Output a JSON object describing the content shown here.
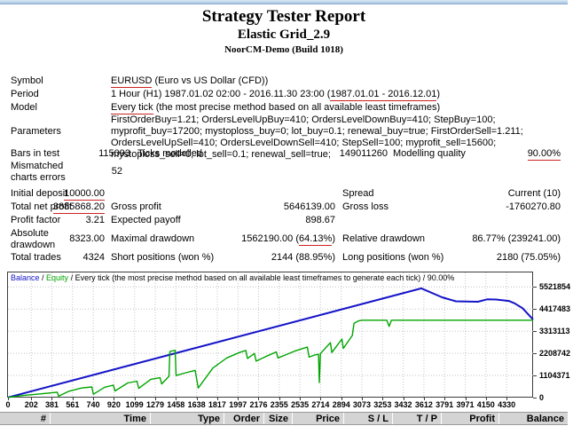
{
  "header": {
    "title": "Strategy Tester Report",
    "expert": "Elastic Grid_2.9",
    "server": "NoorCM-Demo (Build 1018)"
  },
  "settings": {
    "symbol_label": "Symbol",
    "symbol_value": "EURUSD",
    "symbol_desc": " (Euro vs US Dollar (CFD))",
    "period_label": "Period",
    "period_prefix": "1 Hour (H1) 1987.01.02 02:00 - 2016.11.30 23:00 (",
    "period_range": "1987.01.01 - 2016.12.01",
    "period_suffix": ")",
    "model_label": "Model",
    "model_value": "Every tick",
    "model_desc": " (the most precise method based on all available least timeframes)",
    "parameters_label": "Parameters",
    "parameters_value": "FirstOrderBuy=1.21; OrdersLevelUpBuy=410; OrdersLevelDownBuy=410; StepBuy=100; myprofit_buy=17200; mystoploss_buy=0; lot_buy=0.1; renewal_buy=true; FirstOrderSell=1.211; OrdersLevelUpSell=410; OrdersLevelDownSell=410; StepSell=100; myprofit_sell=15600; mystoploss_sell=0; lot_sell=0.1; renewal_sell=true;",
    "bars_label": "Bars in test",
    "bars_value": "115093",
    "ticks_label": "Ticks modelled",
    "ticks_value": "149011260",
    "quality_label": "Modelling quality",
    "quality_value": "90.00%",
    "mismatch_label": "Mismatched charts errors",
    "mismatch_value": "52"
  },
  "results": {
    "initial_deposit_label": "Initial deposit",
    "initial_deposit": "10000.00",
    "spread_label": "Spread",
    "spread_value": "Current (10)",
    "net_profit_label": "Total net profit",
    "net_profit": "3885868.20",
    "gross_profit_label": "Gross profit",
    "gross_profit": "5646139.00",
    "gross_loss_label": "Gross loss",
    "gross_loss": "-1760270.80",
    "profit_factor_label": "Profit factor",
    "profit_factor": "3.21",
    "expected_payoff_label": "Expected payoff",
    "expected_payoff": "898.67",
    "abs_dd_label": "Absolute drawdown",
    "abs_dd": "8323.00",
    "max_dd_label": "Maximal drawdown",
    "max_dd_prefix": "1562190.00 (",
    "max_dd_pct": "64.13%",
    "max_dd_suffix": ")",
    "rel_dd_label": "Relative drawdown",
    "rel_dd": "86.77% (239241.00)",
    "total_trades_label": "Total trades",
    "total_trades": "4324",
    "short_label": "Short positions (won %)",
    "short_value": "2144 (88.95%)",
    "long_label": "Long positions (won %)",
    "long_value": "2180 (75.05%)"
  },
  "colors": {
    "balance": "#1414c8",
    "equity": "#00a500",
    "underline": "#cc2222"
  },
  "chart_data": {
    "type": "line",
    "legend": {
      "balance": "Balance",
      "sep": " / ",
      "equity": "Equity",
      "rest": " / Every tick (the most precise method based on all available least timeframes to generate each tick) / 90.00%"
    },
    "x_ticks": [
      0,
      202,
      381,
      561,
      740,
      920,
      1099,
      1279,
      1458,
      1638,
      1817,
      1997,
      2176,
      2355,
      2535,
      2714,
      2894,
      3073,
      3253,
      3432,
      3612,
      3791,
      3971,
      4150,
      4330
    ],
    "y_ticks": [
      0,
      1104371,
      2208742,
      3313113,
      4417483,
      5521854
    ],
    "xlim": [
      0,
      4560
    ],
    "ylim": [
      0,
      6240000
    ],
    "grid": true,
    "legend_position": "top-left",
    "series": [
      {
        "name": "Balance",
        "color": "#1414c8",
        "width": 2,
        "points": [
          [
            0,
            10000
          ],
          [
            3590,
            5450000
          ],
          [
            3770,
            5000000
          ],
          [
            3890,
            4800000
          ],
          [
            4080,
            4780000
          ],
          [
            4160,
            4900000
          ],
          [
            4240,
            4890000
          ],
          [
            4350,
            4820000
          ],
          [
            4400,
            4700000
          ],
          [
            4470,
            4450000
          ],
          [
            4560,
            3890000
          ]
        ]
      },
      {
        "name": "Equity",
        "color": "#00a500",
        "width": 1.4,
        "points": [
          [
            0,
            10000
          ],
          [
            120,
            100000
          ],
          [
            250,
            170000
          ],
          [
            380,
            240000
          ],
          [
            428,
            270000
          ],
          [
            440,
            70000
          ],
          [
            530,
            320000
          ],
          [
            640,
            480000
          ],
          [
            728,
            530000
          ],
          [
            742,
            170000
          ],
          [
            840,
            520000
          ],
          [
            915,
            620000
          ],
          [
            930,
            330000
          ],
          [
            1040,
            730000
          ],
          [
            1120,
            820000
          ],
          [
            1135,
            460000
          ],
          [
            1240,
            910000
          ],
          [
            1320,
            990000
          ],
          [
            1335,
            680000
          ],
          [
            1398,
            1060000
          ],
          [
            1406,
            2300000
          ],
          [
            1452,
            2360000
          ],
          [
            1460,
            1100000
          ],
          [
            1545,
            1240000
          ],
          [
            1625,
            1360000
          ],
          [
            1652,
            480000
          ],
          [
            1780,
            1480000
          ],
          [
            1900,
            1980000
          ],
          [
            2010,
            2250000
          ],
          [
            2065,
            2350000
          ],
          [
            2080,
            1950000
          ],
          [
            2140,
            2200000
          ],
          [
            2155,
            1820000
          ],
          [
            2240,
            2050000
          ],
          [
            2330,
            2280000
          ],
          [
            2345,
            1980000
          ],
          [
            2420,
            2150000
          ],
          [
            2490,
            2320000
          ],
          [
            2600,
            2520000
          ],
          [
            2615,
            2020000
          ],
          [
            2660,
            2120000
          ],
          [
            2697,
            2160000
          ],
          [
            2704,
            750000
          ],
          [
            2714,
            2200000
          ],
          [
            2800,
            2740000
          ],
          [
            2812,
            2250000
          ],
          [
            2900,
            2920000
          ],
          [
            2912,
            2450000
          ],
          [
            2990,
            3100000
          ],
          [
            3005,
            3700000
          ],
          [
            3040,
            3820000
          ],
          [
            3073,
            3860000
          ],
          [
            3290,
            3860000
          ],
          [
            3310,
            3550000
          ],
          [
            3330,
            3860000
          ],
          [
            4560,
            3860000
          ]
        ]
      }
    ]
  },
  "orders": {
    "columns": [
      "#",
      "Time",
      "Type",
      "Order",
      "Size",
      "Price",
      "S / L",
      "T / P",
      "Profit",
      "Balance"
    ]
  }
}
